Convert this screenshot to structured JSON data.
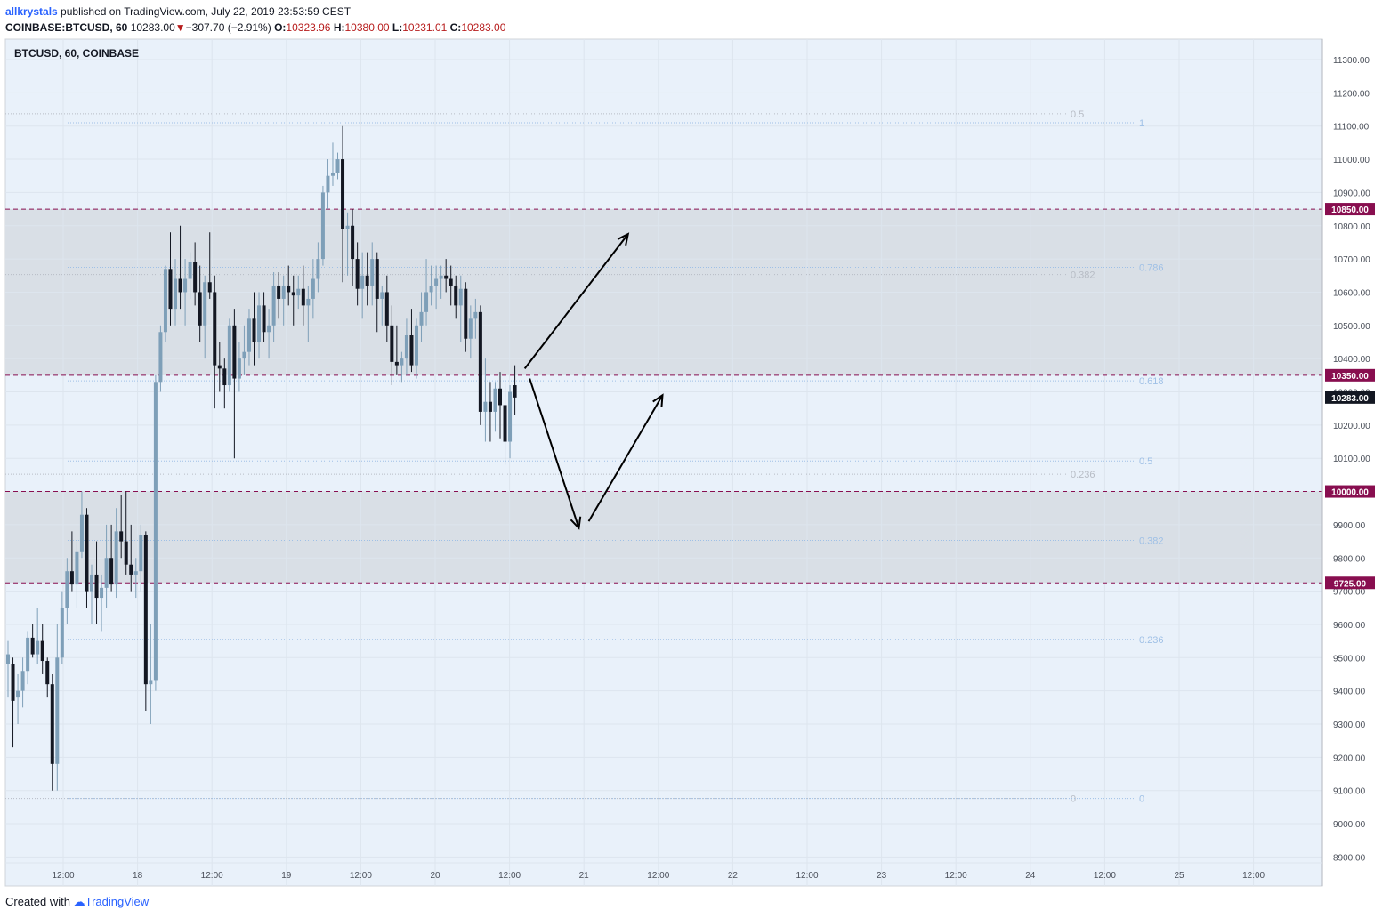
{
  "header": {
    "user": "allkrystals",
    "published": " published on TradingView.com, July 22, 2019 23:53:59 CEST",
    "symbol": "COINBASE:BTCUSD, 60",
    "last": "10283.00",
    "change": "−307.70 (−2.91%)",
    "o_label": "O:",
    "o": "10323.96",
    "h_label": "H:",
    "h": "10380.00",
    "l_label": "L:",
    "l": "10231.01",
    "c_label": "C:",
    "c": "10283.00"
  },
  "footer": {
    "created": "Created with",
    "brand": "TradingView"
  },
  "colors": {
    "background": "#e9f1fa",
    "zone": "#d9dfe6",
    "bull": "#7e9fb8",
    "bear": "#131722",
    "level": "#880e4f",
    "fib": "#9fc0e6",
    "fib2": "#b7bcc5"
  },
  "chart_data": {
    "type": "candlestick",
    "title": "BTCUSD, 60, COINBASE",
    "ylim": [
      8850,
      11350
    ],
    "y_ticks": [
      8900,
      9000,
      9100,
      9200,
      9300,
      9400,
      9500,
      9600,
      9700,
      9800,
      9900,
      10000,
      10100,
      10200,
      10300,
      10400,
      10500,
      10600,
      10700,
      10800,
      10900,
      11000,
      11100,
      11200,
      11300
    ],
    "x_ticks": [
      "12:00",
      "18",
      "12:00",
      "19",
      "12:00",
      "20",
      "12:00",
      "21",
      "12:00",
      "22",
      "12:00",
      "23",
      "12:00",
      "24",
      "12:00",
      "25",
      "12:00"
    ],
    "levels": [
      {
        "label": "10850.00",
        "value": 10850
      },
      {
        "label": "10350.00",
        "value": 10350
      },
      {
        "label": "10000.00",
        "value": 10000
      },
      {
        "label": "9725.00",
        "value": 9725
      }
    ],
    "zones": [
      [
        10350,
        10850
      ],
      [
        9725,
        10000
      ]
    ],
    "last_price": {
      "label": "10283.00",
      "value": 10283
    },
    "fib_outer": [
      {
        "label": "1",
        "value": 11110
      },
      {
        "label": "0.786",
        "value": 10675
      },
      {
        "label": "0.618",
        "value": 10333
      },
      {
        "label": "0.5",
        "value": 10092
      },
      {
        "label": "0.382",
        "value": 9853
      },
      {
        "label": "0.236",
        "value": 9555
      },
      {
        "label": "0",
        "value": 9076
      }
    ],
    "fib_inner": [
      {
        "label": "0.5",
        "value": 11137
      },
      {
        "label": "0.382",
        "value": 10653
      },
      {
        "label": "0.236",
        "value": 10052
      },
      {
        "label": "0",
        "value": 9076
      }
    ],
    "candles": [
      [
        9480,
        9550,
        9380,
        9510
      ],
      [
        9480,
        9500,
        9230,
        9370
      ],
      [
        9380,
        9450,
        9300,
        9400
      ],
      [
        9400,
        9500,
        9350,
        9460
      ],
      [
        9460,
        9580,
        9420,
        9560
      ],
      [
        9560,
        9600,
        9500,
        9510
      ],
      [
        9510,
        9650,
        9480,
        9550
      ],
      [
        9550,
        9600,
        9450,
        9490
      ],
      [
        9490,
        9500,
        9380,
        9420
      ],
      [
        9420,
        9450,
        9100,
        9180
      ],
      [
        9180,
        9600,
        9100,
        9500
      ],
      [
        9500,
        9700,
        9480,
        9650
      ],
      [
        9650,
        9800,
        9600,
        9760
      ],
      [
        9760,
        9880,
        9700,
        9720
      ],
      [
        9720,
        9850,
        9650,
        9820
      ],
      [
        9820,
        10000,
        9800,
        9930
      ],
      [
        9930,
        9950,
        9650,
        9700
      ],
      [
        9700,
        9780,
        9600,
        9750
      ],
      [
        9750,
        9850,
        9600,
        9680
      ],
      [
        9680,
        9750,
        9580,
        9710
      ],
      [
        9710,
        9900,
        9650,
        9800
      ],
      [
        9800,
        9900,
        9700,
        9720
      ],
      [
        9720,
        9950,
        9680,
        9880
      ],
      [
        9880,
        9990,
        9800,
        9850
      ],
      [
        9850,
        10000,
        9750,
        9780
      ],
      [
        9780,
        9900,
        9700,
        9750
      ],
      [
        9750,
        9800,
        9680,
        9760
      ],
      [
        9760,
        9900,
        9700,
        9870
      ],
      [
        9870,
        9880,
        9340,
        9420
      ],
      [
        9420,
        9600,
        9300,
        9430
      ],
      [
        9430,
        10350,
        9400,
        10330
      ],
      [
        10330,
        10500,
        10300,
        10480
      ],
      [
        10480,
        10680,
        10450,
        10670
      ],
      [
        10670,
        10780,
        10500,
        10550
      ],
      [
        10550,
        10700,
        10500,
        10640
      ],
      [
        10640,
        10800,
        10550,
        10600
      ],
      [
        10600,
        10700,
        10500,
        10640
      ],
      [
        10640,
        10720,
        10580,
        10690
      ],
      [
        10690,
        10750,
        10560,
        10600
      ],
      [
        10600,
        10680,
        10450,
        10500
      ],
      [
        10500,
        10650,
        10400,
        10630
      ],
      [
        10630,
        10780,
        10580,
        10600
      ],
      [
        10600,
        10650,
        10250,
        10380
      ],
      [
        10380,
        10450,
        10300,
        10370
      ],
      [
        10370,
        10400,
        10250,
        10320
      ],
      [
        10320,
        10520,
        10300,
        10500
      ],
      [
        10500,
        10550,
        10100,
        10340
      ],
      [
        10340,
        10450,
        10300,
        10400
      ],
      [
        10400,
        10500,
        10350,
        10420
      ],
      [
        10420,
        10550,
        10380,
        10520
      ],
      [
        10520,
        10600,
        10380,
        10450
      ],
      [
        10450,
        10600,
        10400,
        10560
      ],
      [
        10560,
        10600,
        10450,
        10480
      ],
      [
        10480,
        10550,
        10400,
        10500
      ],
      [
        10500,
        10660,
        10450,
        10620
      ],
      [
        10620,
        10660,
        10520,
        10580
      ],
      [
        10580,
        10650,
        10500,
        10620
      ],
      [
        10620,
        10680,
        10560,
        10600
      ],
      [
        10600,
        10650,
        10500,
        10590
      ],
      [
        10590,
        10650,
        10550,
        10610
      ],
      [
        10610,
        10680,
        10500,
        10560
      ],
      [
        10560,
        10620,
        10450,
        10580
      ],
      [
        10580,
        10700,
        10520,
        10640
      ],
      [
        10640,
        10750,
        10600,
        10700
      ],
      [
        10700,
        10920,
        10680,
        10900
      ],
      [
        10900,
        11000,
        10850,
        10950
      ],
      [
        10950,
        11050,
        10920,
        10960
      ],
      [
        10960,
        11020,
        10940,
        11000
      ],
      [
        11000,
        11100,
        10630,
        10790
      ],
      [
        10790,
        10840,
        10650,
        10800
      ],
      [
        10800,
        10850,
        10620,
        10700
      ],
      [
        10700,
        10750,
        10560,
        10610
      ],
      [
        10610,
        10720,
        10520,
        10650
      ],
      [
        10650,
        10720,
        10560,
        10620
      ],
      [
        10620,
        10750,
        10560,
        10700
      ],
      [
        10700,
        10720,
        10480,
        10580
      ],
      [
        10580,
        10620,
        10500,
        10600
      ],
      [
        10600,
        10650,
        10450,
        10500
      ],
      [
        10500,
        10560,
        10320,
        10390
      ],
      [
        10390,
        10500,
        10350,
        10380
      ],
      [
        10380,
        10420,
        10330,
        10400
      ],
      [
        10400,
        10520,
        10350,
        10470
      ],
      [
        10470,
        10550,
        10360,
        10380
      ],
      [
        10380,
        10520,
        10340,
        10500
      ],
      [
        10500,
        10600,
        10450,
        10540
      ],
      [
        10540,
        10700,
        10500,
        10600
      ],
      [
        10600,
        10680,
        10560,
        10620
      ],
      [
        10620,
        10680,
        10550,
        10640
      ],
      [
        10640,
        10680,
        10580,
        10650
      ],
      [
        10650,
        10700,
        10600,
        10640
      ],
      [
        10640,
        10680,
        10560,
        10620
      ],
      [
        10620,
        10650,
        10520,
        10560
      ],
      [
        10560,
        10650,
        10450,
        10610
      ],
      [
        10610,
        10630,
        10420,
        10460
      ],
      [
        10460,
        10560,
        10400,
        10520
      ],
      [
        10520,
        10580,
        10460,
        10540
      ],
      [
        10540,
        10560,
        10200,
        10240
      ],
      [
        10240,
        10400,
        10150,
        10270
      ],
      [
        10270,
        10330,
        10150,
        10240
      ],
      [
        10240,
        10330,
        10180,
        10310
      ],
      [
        10310,
        10360,
        10160,
        10260
      ],
      [
        10260,
        10330,
        10080,
        10150
      ],
      [
        10150,
        10320,
        10100,
        10300
      ],
      [
        10320,
        10380,
        10231,
        10283
      ]
    ],
    "arrows": [
      {
        "from": [
          "idx:105",
          10370
        ],
        "to": [
          "idx:126",
          10775
        ]
      },
      {
        "from": [
          "idx:106",
          10340
        ],
        "to": [
          "idx:116",
          9890
        ]
      },
      {
        "from": [
          "idx:118",
          9910
        ],
        "to": [
          "idx:133",
          10290
        ]
      }
    ]
  }
}
